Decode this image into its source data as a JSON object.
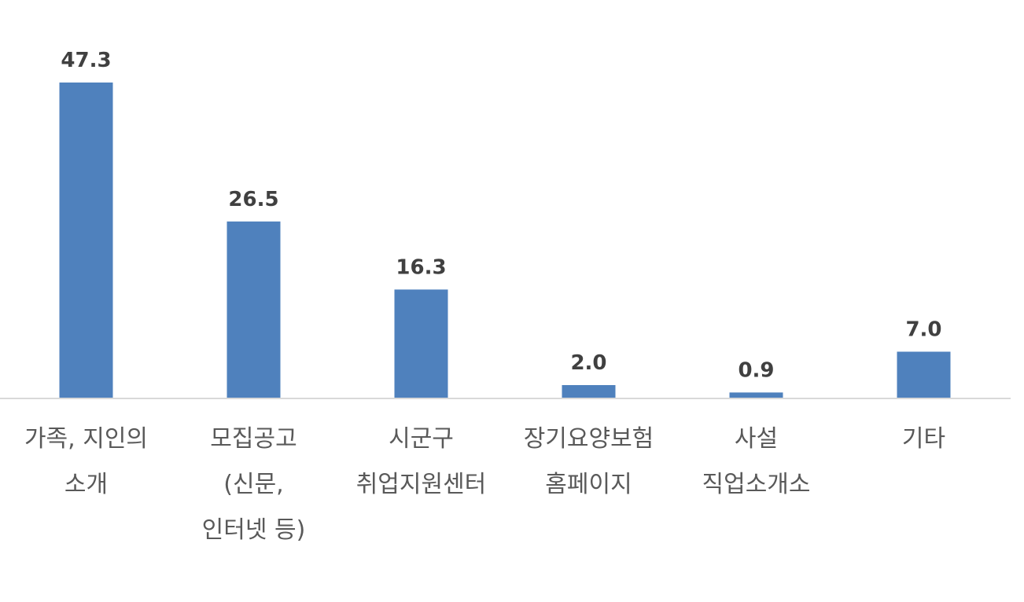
{
  "chart_data": {
    "type": "bar",
    "title": "",
    "xlabel": "",
    "ylabel": "",
    "ylim": [
      0,
      50
    ],
    "grid": false,
    "legend": "none",
    "bar_color": "#4f81bd",
    "categories": [
      [
        "가족, 지인의",
        "소개"
      ],
      [
        "모집공고",
        "(신문,",
        "인터넷 등)"
      ],
      [
        "시군구",
        "취업지원센터"
      ],
      [
        "장기요양보험",
        "홈페이지"
      ],
      [
        "사설",
        "직업소개소"
      ],
      [
        "기타"
      ]
    ],
    "values": [
      47.3,
      26.5,
      16.3,
      2.0,
      0.9,
      7.0
    ],
    "value_labels": [
      "47.3",
      "26.5",
      "16.3",
      "2.0",
      "0.9",
      "7.0"
    ]
  }
}
